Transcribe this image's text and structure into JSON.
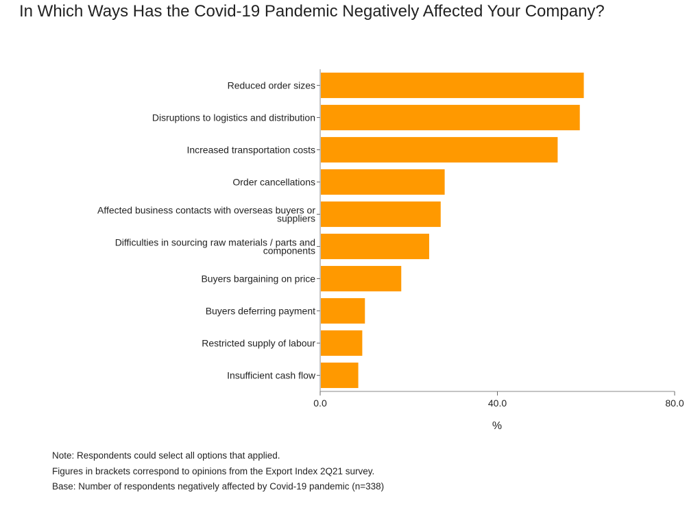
{
  "chart_data": {
    "type": "bar",
    "orientation": "horizontal",
    "title": "In Which Ways Has the Covid-19 Pandemic Negatively Affected Your Company?",
    "xlabel": "%",
    "ylabel": "",
    "xlim": [
      0,
      80
    ],
    "xticks": [
      "0.0",
      "40.0",
      "80.0"
    ],
    "grid": false,
    "bar_color": "#ff9900",
    "categories": [
      "Reduced order sizes",
      "Disruptions to logistics and distribution",
      "Increased transportation costs",
      "Order cancellations",
      "Affected business contacts with overseas buyers or suppliers",
      "Difficulties in sourcing raw materials / parts and components",
      "Buyers bargaining on price",
      "Buyers deferring payment",
      "Restricted supply of labour",
      "Insufficient cash flow"
    ],
    "values": [
      59.5,
      58.6,
      53.6,
      28.1,
      27.2,
      24.6,
      18.3,
      10.1,
      9.5,
      8.6
    ]
  },
  "notes": [
    "Note: Respondents could select all options that applied.",
    "Figures in brackets correspond to opinions from the Export Index 2Q21 survey.",
    "Base: Number of respondents negatively affected by Covid-19 pandemic (n=338)"
  ]
}
